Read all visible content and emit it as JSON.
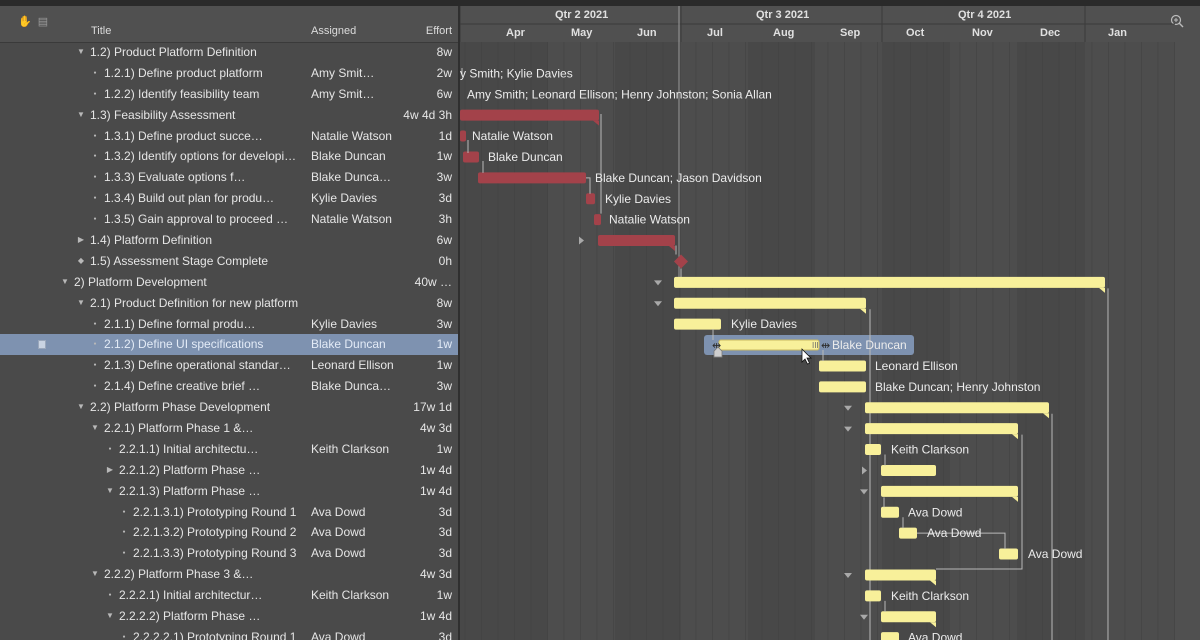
{
  "columns": {
    "title": "Title",
    "assigned": "Assigned",
    "effort": "Effort"
  },
  "timeline": {
    "quarters": [
      "Qtr 2 2021",
      "Qtr 3 2021",
      "Qtr 4 2021"
    ],
    "months": [
      "Apr",
      "May",
      "Jun",
      "Jul",
      "Aug",
      "Sep",
      "Oct",
      "Nov",
      "Dec",
      "Jan"
    ]
  },
  "colors": {
    "critical_bar": "#a3424a",
    "normal_bar": "#f8f09a",
    "selected_row": "#7e92b0"
  },
  "rows": [
    {
      "title": "1.2)  Product Platform Definition",
      "assigned": "",
      "effort": "8w",
      "indent": 1,
      "type": "group-open"
    },
    {
      "title": "1.2.1)  Define product platform",
      "assigned": "Amy Smit…",
      "effort": "2w",
      "indent": 2,
      "type": "task"
    },
    {
      "title": "1.2.2)  Identify feasibility team",
      "assigned": "Amy Smit…",
      "effort": "6w",
      "indent": 2,
      "type": "task"
    },
    {
      "title": "1.3)  Feasibility Assessment",
      "assigned": "",
      "effort": "4w 4d 3h",
      "indent": 1,
      "type": "group-open"
    },
    {
      "title": "1.3.1)  Define product succe…",
      "assigned": "Natalie Watson",
      "effort": "1d",
      "indent": 2,
      "type": "task"
    },
    {
      "title": "1.3.2)  Identify options for developi…",
      "assigned": "Blake Duncan",
      "effort": "1w",
      "indent": 2,
      "type": "task"
    },
    {
      "title": "1.3.3)  Evaluate options f…",
      "assigned": "Blake Dunca…",
      "effort": "3w",
      "indent": 2,
      "type": "task"
    },
    {
      "title": "1.3.4)  Build out plan for produ…",
      "assigned": "Kylie Davies",
      "effort": "3d",
      "indent": 2,
      "type": "task"
    },
    {
      "title": "1.3.5)  Gain approval to proceed …",
      "assigned": "Natalie Watson",
      "effort": "3h",
      "indent": 2,
      "type": "task"
    },
    {
      "title": "1.4)  Platform Definition",
      "assigned": "",
      "effort": "6w",
      "indent": 1,
      "type": "group-closed"
    },
    {
      "title": "1.5)  Assessment Stage Complete",
      "assigned": "",
      "effort": "0h",
      "indent": 1,
      "type": "milestone"
    },
    {
      "title": "2)  Platform Development",
      "assigned": "",
      "effort": "40w …",
      "indent": 0,
      "type": "group-open"
    },
    {
      "title": "2.1)  Product Definition for new platform",
      "assigned": "",
      "effort": "8w",
      "indent": 1,
      "type": "group-open"
    },
    {
      "title": "2.1.1)  Define formal produ…",
      "assigned": "Kylie Davies",
      "effort": "3w",
      "indent": 2,
      "type": "task"
    },
    {
      "title": "2.1.2)  Define UI specifications",
      "assigned": "Blake Duncan",
      "effort": "1w",
      "indent": 2,
      "type": "task",
      "selected": true
    },
    {
      "title": "2.1.3)  Define operational standar…",
      "assigned": "Leonard Ellison",
      "effort": "1w",
      "indent": 2,
      "type": "task"
    },
    {
      "title": "2.1.4)  Define creative brief …",
      "assigned": "Blake Dunca…",
      "effort": "3w",
      "indent": 2,
      "type": "task"
    },
    {
      "title": "2.2)  Platform Phase Development",
      "assigned": "",
      "effort": "17w 1d",
      "indent": 1,
      "type": "group-open"
    },
    {
      "title": "2.2.1)  Platform Phase 1 &…",
      "assigned": "",
      "effort": "4w 3d",
      "indent": 2,
      "type": "group-open"
    },
    {
      "title": "2.2.1.1)  Initial architectu…",
      "assigned": "Keith Clarkson",
      "effort": "1w",
      "indent": 3,
      "type": "task"
    },
    {
      "title": "2.2.1.2)  Platform Phase …",
      "assigned": "",
      "effort": "1w 4d",
      "indent": 3,
      "type": "group-closed"
    },
    {
      "title": "2.2.1.3)  Platform Phase …",
      "assigned": "",
      "effort": "1w 4d",
      "indent": 3,
      "type": "group-open"
    },
    {
      "title": "2.2.1.3.1)  Prototyping Round 1",
      "assigned": "Ava Dowd",
      "effort": "3d",
      "indent": 4,
      "type": "task"
    },
    {
      "title": "2.2.1.3.2)  Prototyping Round 2",
      "assigned": "Ava Dowd",
      "effort": "3d",
      "indent": 4,
      "type": "task"
    },
    {
      "title": "2.2.1.3.3)  Prototyping Round 3",
      "assigned": "Ava Dowd",
      "effort": "3d",
      "indent": 4,
      "type": "task"
    },
    {
      "title": "2.2.2)  Platform Phase 3 &…",
      "assigned": "",
      "effort": "4w 3d",
      "indent": 2,
      "type": "group-open"
    },
    {
      "title": "2.2.2.1)  Initial architectur…",
      "assigned": "Keith Clarkson",
      "effort": "1w",
      "indent": 3,
      "type": "task"
    },
    {
      "title": "2.2.2.2)  Platform Phase …",
      "assigned": "",
      "effort": "1w 4d",
      "indent": 3,
      "type": "group-open"
    },
    {
      "title": "2.2.2.2.1)  Prototyping Round 1",
      "assigned": "Ava Dowd",
      "effort": "3d",
      "indent": 4,
      "type": "task"
    }
  ],
  "gantt_labels": [
    "y Smith; Kylie Davies",
    "Amy Smith; Leonard Ellison; Henry Johnston; Sonia Allan",
    "Natalie Watson",
    "Blake Duncan",
    "Blake Duncan; Jason Davidson",
    "Kylie Davies",
    "Natalie Watson",
    "Kylie Davies",
    "Blake Duncan",
    "Leonard Ellison",
    "Blake Duncan; Henry Johnston",
    "Keith Clarkson",
    "Ava Dowd",
    "Ava Dowd",
    "Ava Dowd",
    "Keith Clarkson",
    "Ava Dowd"
  ]
}
